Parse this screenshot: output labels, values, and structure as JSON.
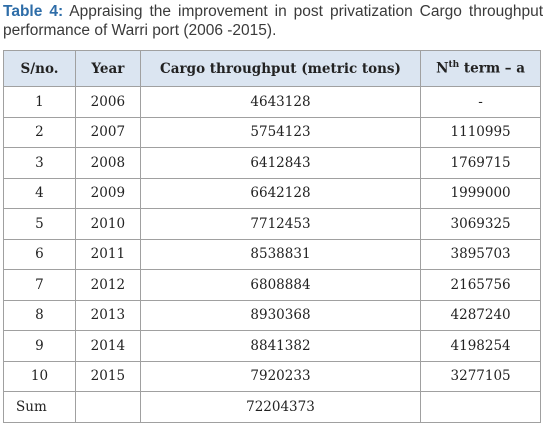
{
  "caption": {
    "label": "Table 4:",
    "text": "Appraising the improvement in post privatization Cargo throughput performance of Warri port (2006 -2015)."
  },
  "table": {
    "header": {
      "sno": "S/no.",
      "year": "Year",
      "cargo": "Cargo throughput (metric tons)",
      "nth": {
        "base": "N",
        "sup": "th",
        "rest": " term – a"
      }
    },
    "rows": [
      [
        "1",
        "2006",
        "4643128",
        "-"
      ],
      [
        "2",
        "2007",
        "5754123",
        "1110995"
      ],
      [
        "3",
        "2008",
        "6412843",
        "1769715"
      ],
      [
        "4",
        "2009",
        "6642128",
        "1999000"
      ],
      [
        "5",
        "2010",
        "7712453",
        "3069325"
      ],
      [
        "6",
        "2011",
        "8538831",
        "3895703"
      ],
      [
        "7",
        "2012",
        "6808884",
        "2165756"
      ],
      [
        "8",
        "2013",
        "8930368",
        "4287240"
      ],
      [
        "9",
        "2014",
        "8841382",
        "4198254"
      ],
      [
        "10",
        "2015",
        "7920233",
        "3277105"
      ]
    ],
    "sum": {
      "label": "Sum",
      "value": "72204373"
    }
  }
}
